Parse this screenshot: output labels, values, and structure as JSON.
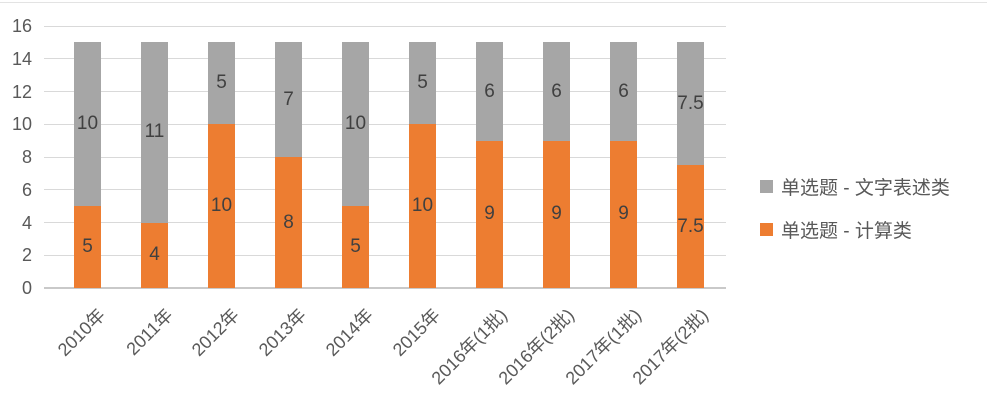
{
  "chart_data": {
    "type": "bar",
    "stacked": true,
    "title": "",
    "xlabel": "",
    "ylabel": "",
    "categories": [
      "2010年",
      "2011年",
      "2012年",
      "2013年",
      "2014年",
      "2015年",
      "2016年(1批)",
      "2016年(2批)",
      "2017年(1批)",
      "2017年(2批)"
    ],
    "series": [
      {
        "name": "单选题 - 计算类",
        "color": "#ED7D31",
        "values": [
          5,
          4,
          10,
          8,
          5,
          10,
          9,
          9,
          9,
          7.5
        ]
      },
      {
        "name": "单选题 - 文字表述类",
        "color": "#A6A6A6",
        "values": [
          10,
          11,
          5,
          7,
          10,
          5,
          6,
          6,
          6,
          7.5
        ]
      }
    ],
    "data_labels_shown": true,
    "ylim": [
      0,
      16
    ],
    "yticks": [
      0,
      2,
      4,
      6,
      8,
      10,
      12,
      14,
      16
    ],
    "grid": true,
    "legend_position": "right",
    "legend": [
      {
        "label": "单选题 - 文字表述类",
        "series": "单选题 - 文字表述类",
        "color": "#A6A6A6"
      },
      {
        "label": "单选题 - 计算类",
        "series": "单选题 - 计算类",
        "color": "#ED7D31"
      }
    ],
    "colors": {
      "gridline": "#D9D9D9",
      "axis_line": "#C9C9C9",
      "tick_label": "#595959",
      "data_label": "#404040",
      "background": "#FFFFFF"
    }
  }
}
